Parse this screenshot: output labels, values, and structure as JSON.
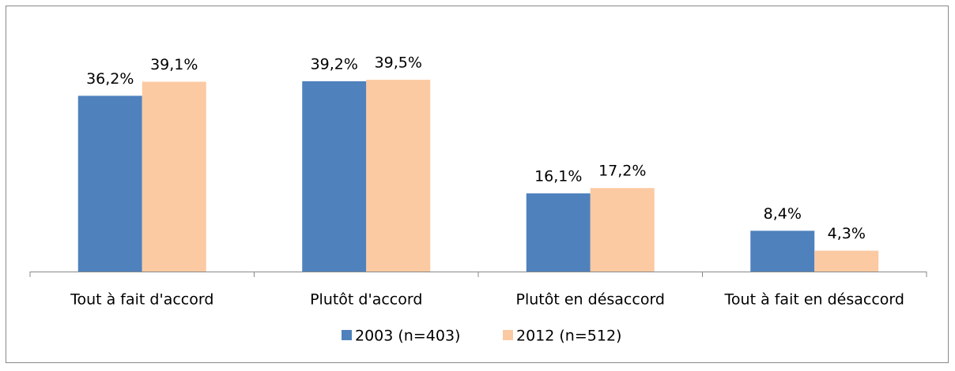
{
  "chart_data": {
    "type": "bar",
    "categories": [
      "Tout à fait d'accord",
      "Plutôt d'accord",
      "Plutôt en désaccord",
      "Tout à fait en désaccord"
    ],
    "series": [
      {
        "name": "2003 (n=403)",
        "color": "#4f81bd",
        "values": [
          36.2,
          39.2,
          16.1,
          8.4
        ],
        "value_labels": [
          "36,2%",
          "39,2%",
          "16,1%",
          "8,4%"
        ]
      },
      {
        "name": "2012 (n=512)",
        "color": "#fbcaa2",
        "values": [
          39.1,
          39.5,
          17.2,
          4.3
        ],
        "value_labels": [
          "39,1%",
          "39,5%",
          "17,2%",
          "4,3%"
        ]
      }
    ],
    "legend": "bottom"
  }
}
